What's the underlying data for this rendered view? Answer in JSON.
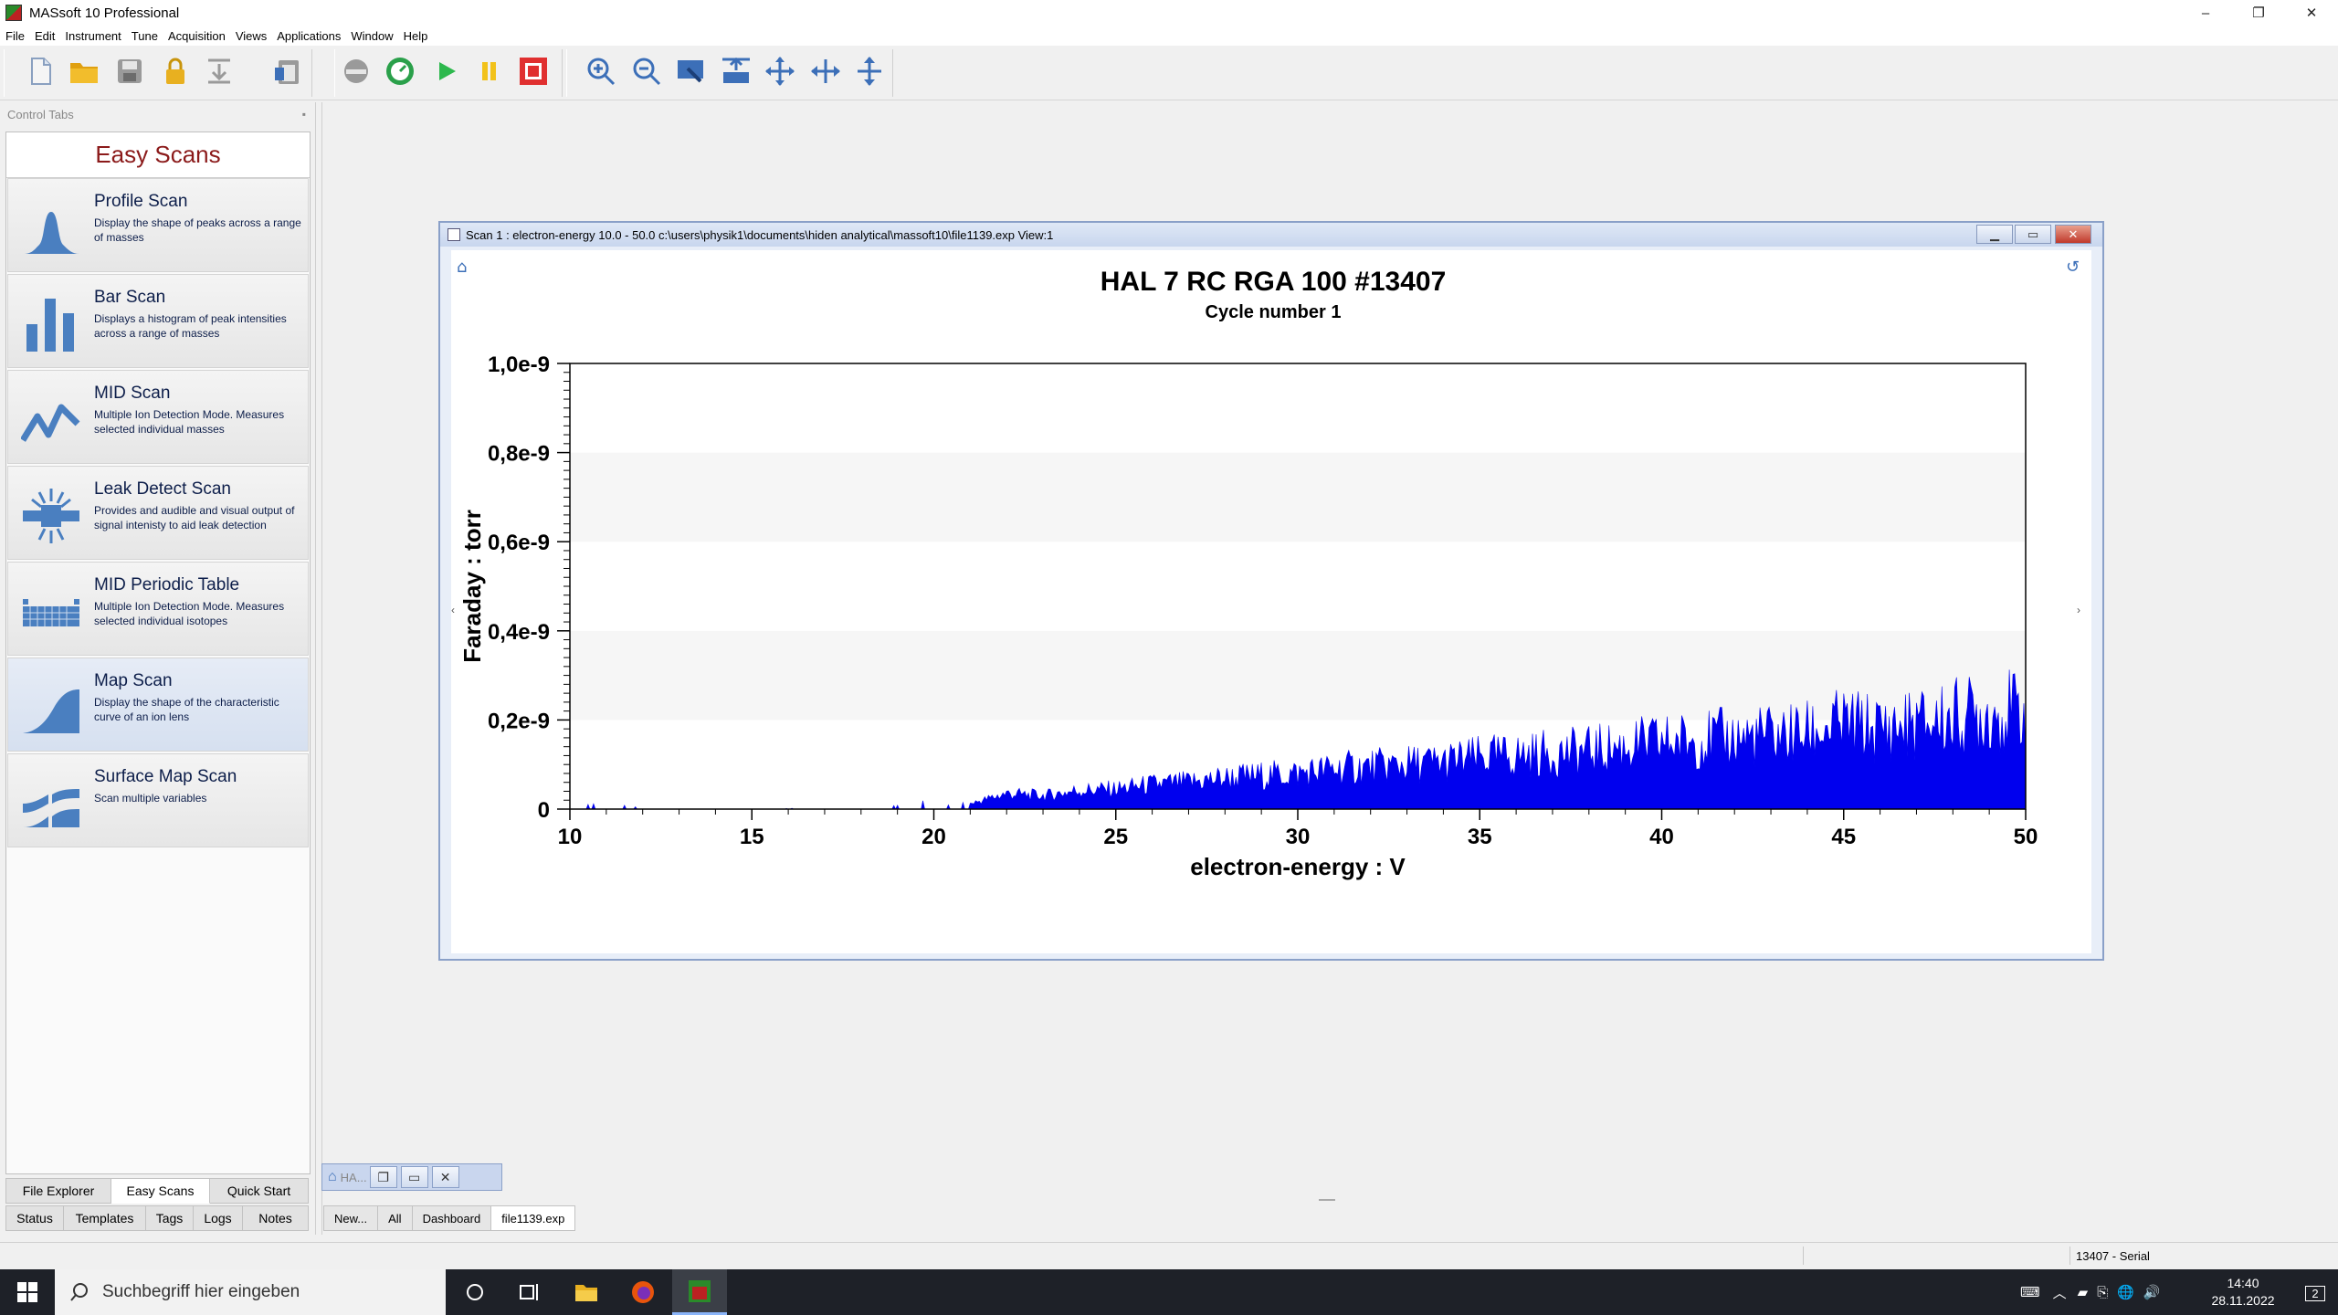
{
  "window": {
    "title": "MASsoft 10 Professional",
    "minimize": "–",
    "maximize": "❐",
    "close": "✕"
  },
  "menu": [
    "File",
    "Edit",
    "Instrument",
    "Tune",
    "Acquisition",
    "Views",
    "Applications",
    "Window",
    "Help"
  ],
  "toolbar": {
    "icons": [
      "new-file-icon",
      "open-folder-icon",
      "save-icon",
      "lock-icon",
      "download-icon",
      "clipboard-icon",
      "vacuum-icon",
      "gauge-icon",
      "play-icon",
      "pause-icon",
      "stop-icon",
      "zoom-in-icon",
      "zoom-out-icon",
      "zoom-rect-icon",
      "zoom-fit-icon",
      "pan-icon",
      "expand-horizontal-icon",
      "expand-vertical-icon"
    ]
  },
  "control_panel": {
    "header": "Control Tabs",
    "title": "Easy Scans",
    "items": [
      {
        "title": "Profile Scan",
        "desc": "Display the shape of peaks across a range of masses"
      },
      {
        "title": "Bar Scan",
        "desc": "Displays a histogram of peak intensities across a range of masses"
      },
      {
        "title": "MID Scan",
        "desc": "Multiple Ion Detection Mode. Measures selected individual masses"
      },
      {
        "title": "Leak Detect Scan",
        "desc": "Provides and audible and visual output of signal intenisty to aid leak detection"
      },
      {
        "title": "MID Periodic Table",
        "desc": "Multiple Ion Detection Mode. Measures selected individual isotopes"
      },
      {
        "title": "Map Scan",
        "desc": "Display the shape of the characteristic curve of an ion lens"
      },
      {
        "title": "Surface Map Scan",
        "desc": "Scan multiple variables"
      }
    ],
    "tabs_row1": [
      "File Explorer",
      "Easy Scans",
      "Quick Start"
    ],
    "tabs_row2": [
      "Status",
      "Templates",
      "Tags",
      "Logs",
      "Notes"
    ]
  },
  "scan_window": {
    "title": "Scan 1 : electron-energy 10.0 - 50.0 c:\\users\\physik1\\documents\\hiden analytical\\massoft10\\file1139.exp View:1"
  },
  "minimized_window": {
    "label": "HA..."
  },
  "doc_tabs": [
    "New...",
    "All",
    "Dashboard",
    "file1139.exp"
  ],
  "status": {
    "serial": "13407 - Serial"
  },
  "taskbar": {
    "search_placeholder": "Suchbegriff hier eingeben",
    "time": "14:40",
    "date": "28.11.2022",
    "notifications": "2"
  },
  "chart_data": {
    "type": "area",
    "title": "HAL 7 RC RGA 100 #13407",
    "subtitle": "Cycle number 1",
    "xlabel": "electron-energy : V",
    "ylabel": "Faraday : torr",
    "xlim": [
      10,
      50
    ],
    "ylim": [
      0,
      1e-09
    ],
    "x_ticks": [
      "10",
      "15",
      "20",
      "25",
      "30",
      "35",
      "40",
      "45",
      "50"
    ],
    "y_ticks": [
      "0",
      "0,2e-9",
      "0,4e-9",
      "0,6e-9",
      "0,8e-9",
      "1,0e-9"
    ],
    "color": "#0000ee",
    "series": [
      {
        "x": [
          10,
          11,
          12,
          13,
          14,
          15,
          16,
          17,
          18,
          19,
          19.5,
          20,
          21,
          22,
          23,
          24,
          25,
          26,
          27,
          28,
          29,
          30,
          31,
          32,
          33,
          34,
          35,
          36,
          37,
          38,
          39,
          40,
          41,
          42,
          43,
          44,
          45,
          46,
          47,
          48,
          49,
          50
        ],
        "values": [
          5e-12,
          1e-11,
          2e-12,
          1e-12,
          4e-12,
          2e-12,
          1e-12,
          4e-12,
          2e-12,
          6e-12,
          2e-11,
          3e-12,
          1.2e-11,
          3.5e-11,
          3e-11,
          4.2e-11,
          4.5e-11,
          5.5e-11,
          6e-11,
          7e-11,
          7.5e-11,
          8e-11,
          9e-11,
          9.5e-11,
          1e-10,
          1.05e-10,
          1.15e-10,
          1.2e-10,
          1.25e-10,
          1.3e-10,
          1.4e-10,
          1.5e-10,
          1.55e-10,
          1.6e-10,
          1.65e-10,
          1.7e-10,
          1.9e-10,
          1.8e-10,
          1.9e-10,
          2.05e-10,
          2.15e-10,
          2.2e-10
        ]
      }
    ],
    "grid": "horizontal bands",
    "legend": "none"
  }
}
